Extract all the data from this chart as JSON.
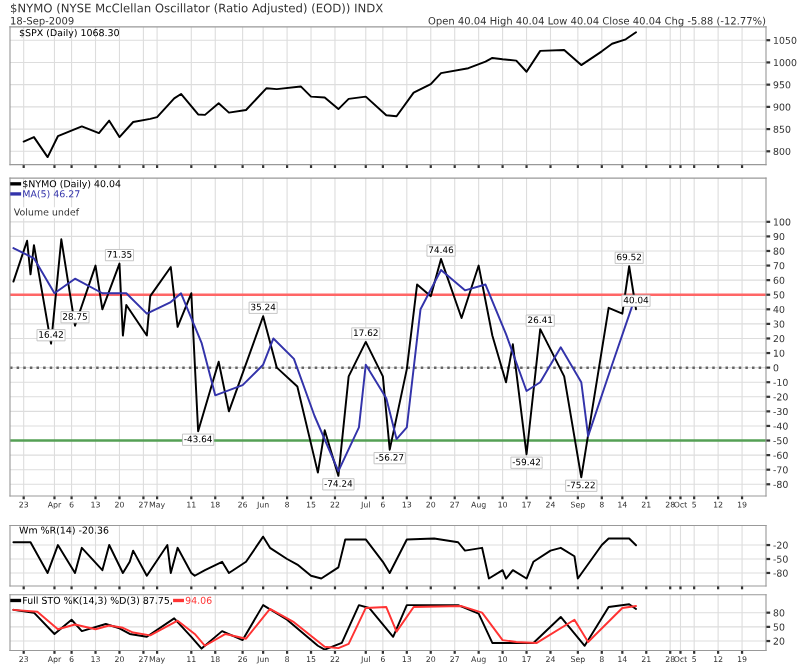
{
  "chart_data": [
    {
      "type": "line",
      "title": "$NYMO (NYSE McClellan Oscillator (Ratio Adjusted) (EOD)) INDX",
      "subtitle": "18-Sep-2009",
      "annotations": [
        "Open 40.04 High 40.04 Low 40.04 Close 40.04 Chg -5.88 (-12.77%)"
      ],
      "series": [
        {
          "name": "$SPX (Daily) 1068.30",
          "color": "#000000",
          "x": [
            "2009-03-23",
            "2009-03-26",
            "2009-03-30",
            "2009-04-02",
            "2009-04-09",
            "2009-04-14",
            "2009-04-17",
            "2009-04-20",
            "2009-04-24",
            "2009-04-29",
            "2009-05-01",
            "2009-05-06",
            "2009-05-08",
            "2009-05-13",
            "2009-05-15",
            "2009-05-19",
            "2009-05-22",
            "2009-05-27",
            "2009-06-02",
            "2009-06-05",
            "2009-06-12",
            "2009-06-15",
            "2009-06-19",
            "2009-06-23",
            "2009-06-26",
            "2009-07-01",
            "2009-07-07",
            "2009-07-10",
            "2009-07-15",
            "2009-07-20",
            "2009-07-23",
            "2009-07-31",
            "2009-08-05",
            "2009-08-07",
            "2009-08-10",
            "2009-08-14",
            "2009-08-17",
            "2009-08-21",
            "2009-08-28",
            "2009-09-02",
            "2009-09-08",
            "2009-09-11",
            "2009-09-15",
            "2009-09-18"
          ],
          "values": [
            822,
            832,
            787,
            834,
            856,
            841,
            869,
            832,
            866,
            873,
            877,
            919,
            929,
            883,
            882,
            908,
            887,
            893,
            942,
            940,
            946,
            923,
            921,
            895,
            918,
            923,
            881,
            879,
            932,
            951,
            976,
            987,
            1002,
            1010,
            1007,
            1004,
            979,
            1026,
            1028,
            994,
            1025,
            1042,
            1052,
            1068
          ]
        }
      ],
      "xlim": [
        "2009-03-19",
        "2009-10-26"
      ],
      "xticks": [
        {
          "value": "2009-03-23",
          "label": null
        },
        {
          "value": "2009-04-01",
          "label": null
        },
        {
          "value": "2009-04-06",
          "label": null
        },
        {
          "value": "2009-04-13",
          "label": null
        },
        {
          "value": "2009-04-20",
          "label": null
        },
        {
          "value": "2009-04-27",
          "label": null
        },
        {
          "value": "2009-05-01",
          "label": null
        },
        {
          "value": "2009-05-11",
          "label": null
        },
        {
          "value": "2009-05-18",
          "label": null
        },
        {
          "value": "2009-05-26",
          "label": null
        },
        {
          "value": "2009-06-01",
          "label": null
        },
        {
          "value": "2009-06-08",
          "label": null
        },
        {
          "value": "2009-06-15",
          "label": null
        },
        {
          "value": "2009-06-22",
          "label": null
        },
        {
          "value": "2009-07-01",
          "label": null
        },
        {
          "value": "2009-07-06",
          "label": null
        },
        {
          "value": "2009-07-13",
          "label": null
        },
        {
          "value": "2009-07-20",
          "label": null
        },
        {
          "value": "2009-07-27",
          "label": null
        },
        {
          "value": "2009-08-03",
          "label": null
        },
        {
          "value": "2009-08-10",
          "label": null
        },
        {
          "value": "2009-08-17",
          "label": null
        },
        {
          "value": "2009-08-24",
          "label": null
        },
        {
          "value": "2009-09-01",
          "label": null
        },
        {
          "value": "2009-09-08",
          "label": null
        },
        {
          "value": "2009-09-14",
          "label": null
        },
        {
          "value": "2009-09-21",
          "label": null
        },
        {
          "value": "2009-09-28",
          "label": null
        },
        {
          "value": "2009-10-01",
          "label": null
        },
        {
          "value": "2009-10-05",
          "label": null
        },
        {
          "value": "2009-10-12",
          "label": null
        },
        {
          "value": "2009-10-19",
          "label": null
        }
      ],
      "ylim": [
        770,
        1080
      ],
      "yticks": [
        800,
        850,
        900,
        950,
        1000,
        1050
      ],
      "tick_labels": "y",
      "grid": true
    },
    {
      "type": "line",
      "series": [
        {
          "name": "$NYMO (Daily) 40.04",
          "color": "#000000",
          "x": [
            "2009-03-20",
            "2009-03-24",
            "2009-03-25",
            "2009-03-26",
            "2009-03-31",
            "2009-04-03",
            "2009-04-07",
            "2009-04-13",
            "2009-04-15",
            "2009-04-20",
            "2009-04-21",
            "2009-04-22",
            "2009-04-28",
            "2009-04-29",
            "2009-05-05",
            "2009-05-07",
            "2009-05-11",
            "2009-05-13",
            "2009-05-19",
            "2009-05-22",
            "2009-06-01",
            "2009-06-05",
            "2009-06-11",
            "2009-06-17",
            "2009-06-19",
            "2009-06-23",
            "2009-06-26",
            "2009-07-01",
            "2009-07-06",
            "2009-07-08",
            "2009-07-13",
            "2009-07-16",
            "2009-07-20",
            "2009-07-23",
            "2009-07-29",
            "2009-08-03",
            "2009-08-07",
            "2009-08-11",
            "2009-08-13",
            "2009-08-17",
            "2009-08-21",
            "2009-08-28",
            "2009-09-02",
            "2009-09-10",
            "2009-09-14",
            "2009-09-16",
            "2009-09-18"
          ],
          "values": [
            59,
            87,
            64,
            84,
            16.42,
            88,
            28.75,
            70,
            40,
            71.35,
            22,
            43,
            22,
            49,
            69,
            28,
            51,
            -43.64,
            4,
            -30,
            35.24,
            0,
            -13,
            -72,
            -43,
            -74.24,
            -6,
            17.62,
            -6,
            -56.27,
            -1,
            57,
            49,
            74.46,
            34,
            70,
            22,
            -10,
            16,
            -59.42,
            26.41,
            -6,
            -75.22,
            41,
            37,
            69.52,
            40.04
          ]
        },
        {
          "name": "MA(5) 46.27",
          "color": "#3333aa",
          "x": [
            "2009-03-20",
            "2009-03-26",
            "2009-04-01",
            "2009-04-07",
            "2009-04-15",
            "2009-04-22",
            "2009-04-28",
            "2009-05-05",
            "2009-05-08",
            "2009-05-14",
            "2009-05-18",
            "2009-05-26",
            "2009-06-01",
            "2009-06-04",
            "2009-06-10",
            "2009-06-16",
            "2009-06-23",
            "2009-06-29",
            "2009-07-01",
            "2009-07-07",
            "2009-07-10",
            "2009-07-13",
            "2009-07-17",
            "2009-07-23",
            "2009-07-30",
            "2009-08-05",
            "2009-08-11",
            "2009-08-17",
            "2009-08-21",
            "2009-08-27",
            "2009-09-02",
            "2009-09-04",
            "2009-09-11",
            "2009-09-17",
            "2009-09-18"
          ],
          "values": [
            82,
            75,
            51,
            61,
            51,
            51,
            37,
            45,
            51,
            17,
            -19,
            -12,
            2,
            20,
            6,
            -33,
            -71,
            -41,
            2,
            -21,
            -49,
            -41,
            40,
            67,
            53,
            57,
            23,
            -16,
            -10,
            14,
            -10,
            -47,
            2,
            43,
            46.27
          ]
        }
      ],
      "annotations": [
        "Volume undef",
        {
          "text": "16.42",
          "x": "2009-03-31",
          "y": 16.42
        },
        {
          "text": "28.75",
          "x": "2009-04-07",
          "y": 28.75
        },
        {
          "text": "71.35",
          "x": "2009-04-20",
          "y": 71.35
        },
        {
          "text": "-43.64",
          "x": "2009-05-13",
          "y": -43.64
        },
        {
          "text": "35.24",
          "x": "2009-06-01",
          "y": 35.24
        },
        {
          "text": "-74.24",
          "x": "2009-06-23",
          "y": -74.24
        },
        {
          "text": "17.62",
          "x": "2009-07-01",
          "y": 17.62
        },
        {
          "text": "-56.27",
          "x": "2009-07-08",
          "y": -56.27
        },
        {
          "text": "74.46",
          "x": "2009-07-23",
          "y": 74.46
        },
        {
          "text": "-59.42",
          "x": "2009-08-17",
          "y": -59.42
        },
        {
          "text": "26.41",
          "x": "2009-08-21",
          "y": 26.41
        },
        {
          "text": "-75.22",
          "x": "2009-09-02",
          "y": -75.22
        },
        {
          "text": "69.52",
          "x": "2009-09-16",
          "y": 69.52
        },
        {
          "text": "40.04",
          "x": "2009-09-18",
          "y": 40.04
        }
      ],
      "ref_lines": [
        {
          "axis": "y",
          "value": 50,
          "color": "#ff6666",
          "line_style": "solid"
        },
        {
          "axis": "y",
          "value": -50,
          "color": "#55a055",
          "line_style": "solid"
        },
        {
          "axis": "y",
          "value": 0,
          "color": "#666666",
          "line_style": "dotted"
        }
      ],
      "xlim": [
        "2009-03-19",
        "2009-10-26"
      ],
      "xticks": [
        {
          "value": "2009-03-23",
          "label": "23"
        },
        {
          "value": "2009-04-01",
          "label": "Apr"
        },
        {
          "value": "2009-04-06",
          "label": "6"
        },
        {
          "value": "2009-04-13",
          "label": "13"
        },
        {
          "value": "2009-04-20",
          "label": "20"
        },
        {
          "value": "2009-04-27",
          "label": "27"
        },
        {
          "value": "2009-05-01",
          "label": "May"
        },
        {
          "value": "2009-05-11",
          "label": "11"
        },
        {
          "value": "2009-05-18",
          "label": "18"
        },
        {
          "value": "2009-05-26",
          "label": "26"
        },
        {
          "value": "2009-06-01",
          "label": "Jun"
        },
        {
          "value": "2009-06-08",
          "label": "8"
        },
        {
          "value": "2009-06-15",
          "label": "15"
        },
        {
          "value": "2009-06-22",
          "label": "22"
        },
        {
          "value": "2009-07-01",
          "label": "Jul"
        },
        {
          "value": "2009-07-06",
          "label": "6"
        },
        {
          "value": "2009-07-13",
          "label": "13"
        },
        {
          "value": "2009-07-20",
          "label": "20"
        },
        {
          "value": "2009-07-27",
          "label": "27"
        },
        {
          "value": "2009-08-03",
          "label": "Aug"
        },
        {
          "value": "2009-08-10",
          "label": "10"
        },
        {
          "value": "2009-08-17",
          "label": "17"
        },
        {
          "value": "2009-08-24",
          "label": "24"
        },
        {
          "value": "2009-09-01",
          "label": "Sep"
        },
        {
          "value": "2009-09-08",
          "label": "8"
        },
        {
          "value": "2009-09-14",
          "label": "14"
        },
        {
          "value": "2009-09-21",
          "label": "21"
        },
        {
          "value": "2009-09-28",
          "label": "28"
        },
        {
          "value": "2009-10-01",
          "label": "Oct"
        },
        {
          "value": "2009-10-05",
          "label": "5"
        },
        {
          "value": "2009-10-12",
          "label": "12"
        },
        {
          "value": "2009-10-19",
          "label": "19"
        }
      ],
      "ylim": [
        -88,
        130
      ],
      "yticks": [
        -80,
        -70,
        -60,
        -50,
        -40,
        -30,
        -20,
        -10,
        0,
        10,
        20,
        30,
        40,
        50,
        60,
        70,
        80,
        90,
        100
      ],
      "grid": true,
      "legend": "top left"
    },
    {
      "type": "line",
      "series": [
        {
          "name": "Wm %R(14) -20.36",
          "color": "#000000",
          "x": [
            "2009-03-20",
            "2009-03-25",
            "2009-03-30",
            "2009-04-02",
            "2009-04-07",
            "2009-04-09",
            "2009-04-15",
            "2009-04-17",
            "2009-04-21",
            "2009-04-23",
            "2009-04-24",
            "2009-04-28",
            "2009-05-04",
            "2009-05-05",
            "2009-05-07",
            "2009-05-11",
            "2009-05-12",
            "2009-05-15",
            "2009-05-20",
            "2009-05-22",
            "2009-05-27",
            "2009-06-01",
            "2009-06-03",
            "2009-06-08",
            "2009-06-11",
            "2009-06-15",
            "2009-06-18",
            "2009-06-23",
            "2009-06-25",
            "2009-07-01",
            "2009-07-06",
            "2009-07-08",
            "2009-07-13",
            "2009-07-21",
            "2009-07-28",
            "2009-07-30",
            "2009-08-04",
            "2009-08-06",
            "2009-08-10",
            "2009-08-11",
            "2009-08-13",
            "2009-08-17",
            "2009-08-19",
            "2009-08-24",
            "2009-08-27",
            "2009-08-31",
            "2009-09-01",
            "2009-09-08",
            "2009-09-10",
            "2009-09-16",
            "2009-09-18"
          ],
          "values": [
            -14,
            -14,
            -80,
            -20,
            -80,
            -26,
            -74,
            -20,
            -80,
            -56,
            -32,
            -86,
            -20,
            -80,
            -26,
            -80,
            -86,
            -74,
            -56,
            -80,
            -56,
            -2,
            -26,
            -50,
            -62,
            -86,
            -92,
            -68,
            -8,
            -8,
            -56,
            -80,
            -8,
            -6,
            -14,
            -32,
            -26,
            -92,
            -74,
            -92,
            -74,
            -92,
            -56,
            -32,
            -26,
            -44,
            -92,
            -20,
            -6,
            -6,
            -20.36
          ]
        }
      ],
      "xlim": [
        "2009-03-19",
        "2009-10-26"
      ],
      "xticks": [
        {
          "value": "2009-03-23",
          "label": null
        },
        {
          "value": "2009-04-01",
          "label": null
        },
        {
          "value": "2009-04-06",
          "label": null
        },
        {
          "value": "2009-04-13",
          "label": null
        },
        {
          "value": "2009-04-20",
          "label": null
        },
        {
          "value": "2009-04-27",
          "label": null
        },
        {
          "value": "2009-05-01",
          "label": null
        },
        {
          "value": "2009-05-11",
          "label": null
        },
        {
          "value": "2009-05-18",
          "label": null
        },
        {
          "value": "2009-05-26",
          "label": null
        },
        {
          "value": "2009-06-01",
          "label": null
        },
        {
          "value": "2009-06-08",
          "label": null
        },
        {
          "value": "2009-06-15",
          "label": null
        },
        {
          "value": "2009-06-22",
          "label": null
        },
        {
          "value": "2009-07-01",
          "label": null
        },
        {
          "value": "2009-07-06",
          "label": null
        },
        {
          "value": "2009-07-13",
          "label": null
        },
        {
          "value": "2009-07-20",
          "label": null
        },
        {
          "value": "2009-07-27",
          "label": null
        },
        {
          "value": "2009-08-03",
          "label": null
        },
        {
          "value": "2009-08-10",
          "label": null
        },
        {
          "value": "2009-08-17",
          "label": null
        },
        {
          "value": "2009-08-24",
          "label": null
        },
        {
          "value": "2009-09-01",
          "label": null
        },
        {
          "value": "2009-09-08",
          "label": null
        },
        {
          "value": "2009-09-14",
          "label": null
        },
        {
          "value": "2009-09-21",
          "label": null
        },
        {
          "value": "2009-09-28",
          "label": null
        },
        {
          "value": "2009-10-01",
          "label": null
        },
        {
          "value": "2009-10-05",
          "label": null
        },
        {
          "value": "2009-10-12",
          "label": null
        },
        {
          "value": "2009-10-19",
          "label": null
        }
      ],
      "ylim": [
        -108,
        22
      ],
      "yticks": [
        -20,
        -50,
        -80
      ],
      "tick_labels": "y",
      "grid": true
    },
    {
      "type": "line",
      "series": [
        {
          "name": "Full STO %K(14,3) %D(3) 87.75,",
          "color": "#000000",
          "x": [
            "2009-03-20",
            "2009-03-26",
            "2009-04-01",
            "2009-04-06",
            "2009-04-09",
            "2009-04-16",
            "2009-04-20",
            "2009-04-23",
            "2009-04-28",
            "2009-05-06",
            "2009-05-11",
            "2009-05-14",
            "2009-05-20",
            "2009-05-26",
            "2009-06-01",
            "2009-06-08",
            "2009-06-17",
            "2009-06-19",
            "2009-06-24",
            "2009-06-29",
            "2009-07-02",
            "2009-07-09",
            "2009-07-13",
            "2009-07-28",
            "2009-08-03",
            "2009-08-07",
            "2009-08-12",
            "2009-08-19",
            "2009-08-27",
            "2009-09-03",
            "2009-09-10",
            "2009-09-16",
            "2009-09-18"
          ],
          "values": [
            86,
            80,
            35,
            65,
            41,
            56,
            47,
            35,
            29,
            68,
            29,
            4,
            41,
            22,
            96,
            65,
            10,
            2,
            16,
            96,
            90,
            29,
            96,
            96,
            78,
            16,
            16,
            16,
            71,
            10,
            92,
            98,
            87.75
          ]
        },
        {
          "name": "94.06",
          "color": "#ff3333",
          "x": [
            "2009-03-20",
            "2009-03-27",
            "2009-04-02",
            "2009-04-07",
            "2009-04-13",
            "2009-04-17",
            "2009-04-21",
            "2009-04-24",
            "2009-04-29",
            "2009-05-07",
            "2009-05-12",
            "2009-05-15",
            "2009-05-21",
            "2009-05-27",
            "2009-06-03",
            "2009-06-10",
            "2009-06-19",
            "2009-06-23",
            "2009-06-26",
            "2009-07-01",
            "2009-07-07",
            "2009-07-10",
            "2009-07-15",
            "2009-07-29",
            "2009-08-04",
            "2009-08-10",
            "2009-08-14",
            "2009-08-20",
            "2009-08-31",
            "2009-09-04",
            "2009-09-14",
            "2009-09-18"
          ],
          "values": [
            86,
            82,
            45,
            55,
            45,
            53,
            48,
            38,
            32,
            63,
            35,
            10,
            35,
            25,
            88,
            60,
            8,
            5,
            14,
            90,
            92,
            40,
            92,
            94,
            80,
            22,
            18,
            16,
            65,
            18,
            90,
            94.06
          ]
        }
      ],
      "xlim": [
        "2009-03-19",
        "2009-10-26"
      ],
      "xticks": [
        {
          "value": "2009-03-23",
          "label": "23"
        },
        {
          "value": "2009-04-01",
          "label": "Apr"
        },
        {
          "value": "2009-04-06",
          "label": "6"
        },
        {
          "value": "2009-04-13",
          "label": "13"
        },
        {
          "value": "2009-04-20",
          "label": "20"
        },
        {
          "value": "2009-04-27",
          "label": "27"
        },
        {
          "value": "2009-05-01",
          "label": "May"
        },
        {
          "value": "2009-05-11",
          "label": "11"
        },
        {
          "value": "2009-05-18",
          "label": "18"
        },
        {
          "value": "2009-05-26",
          "label": "26"
        },
        {
          "value": "2009-06-01",
          "label": "Jun"
        },
        {
          "value": "2009-06-08",
          "label": "8"
        },
        {
          "value": "2009-06-15",
          "label": "15"
        },
        {
          "value": "2009-06-22",
          "label": "22"
        },
        {
          "value": "2009-07-01",
          "label": "Jul"
        },
        {
          "value": "2009-07-06",
          "label": "6"
        },
        {
          "value": "2009-07-13",
          "label": "13"
        },
        {
          "value": "2009-07-20",
          "label": "20"
        },
        {
          "value": "2009-07-27",
          "label": "27"
        },
        {
          "value": "2009-08-03",
          "label": "Aug"
        },
        {
          "value": "2009-08-10",
          "label": "10"
        },
        {
          "value": "2009-08-17",
          "label": "17"
        },
        {
          "value": "2009-08-24",
          "label": "24"
        },
        {
          "value": "2009-09-01",
          "label": "Sep"
        },
        {
          "value": "2009-09-08",
          "label": "8"
        },
        {
          "value": "2009-09-14",
          "label": "14"
        },
        {
          "value": "2009-09-21",
          "label": "21"
        },
        {
          "value": "2009-09-28",
          "label": "28"
        },
        {
          "value": "2009-10-01",
          "label": "Oct"
        },
        {
          "value": "2009-10-05",
          "label": "5"
        },
        {
          "value": "2009-10-12",
          "label": "12"
        },
        {
          "value": "2009-10-19",
          "label": "19"
        }
      ],
      "ylim": [
        0,
        118
      ],
      "yticks": [
        20,
        50,
        80
      ],
      "grid": true,
      "legend": "top left"
    }
  ]
}
